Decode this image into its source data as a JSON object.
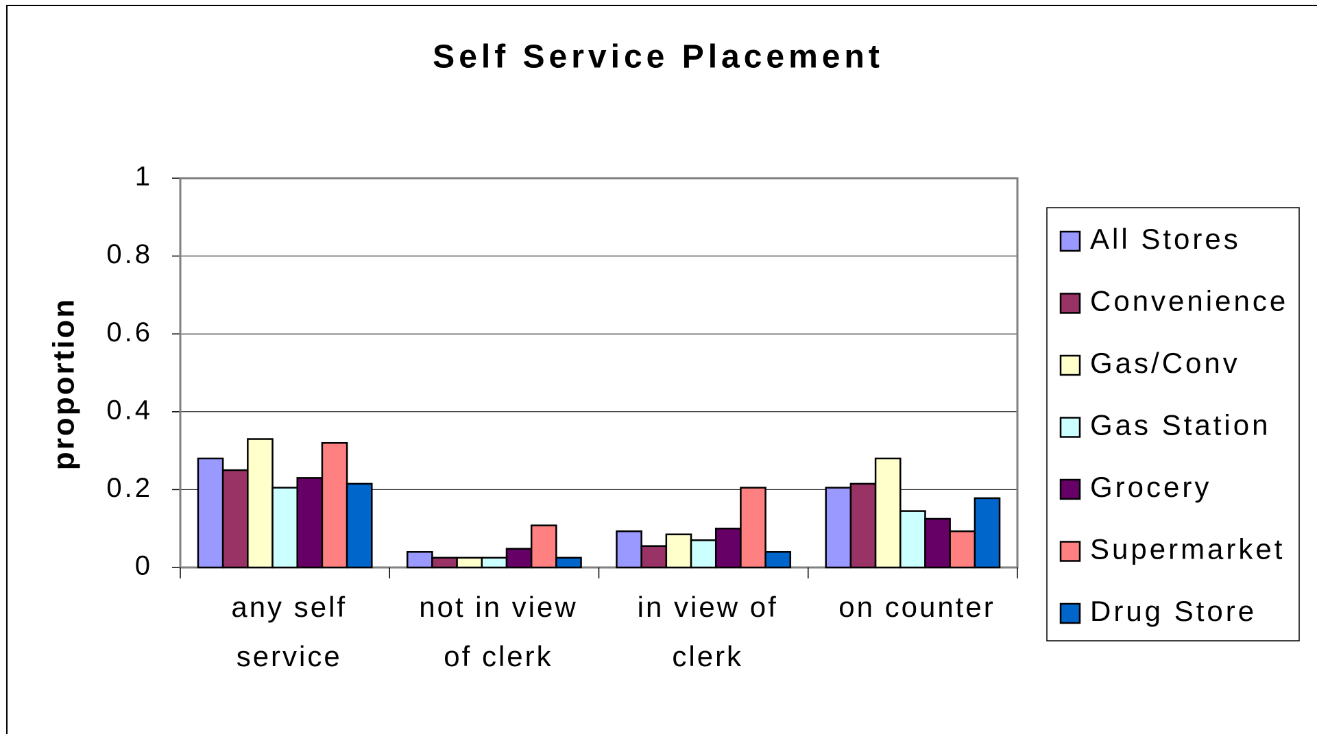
{
  "chart_data": {
    "type": "bar",
    "title": "Self Service Placement",
    "y_label": "proportion",
    "categories": [
      "any self service",
      "not in view of clerk",
      "in view of clerk",
      "on counter"
    ],
    "series": [
      {
        "name": "All Stores",
        "color": "#9999ff",
        "values": [
          0.28,
          0.04,
          0.093,
          0.205
        ]
      },
      {
        "name": "Convenience",
        "color": "#993366",
        "values": [
          0.25,
          0.025,
          0.055,
          0.215
        ]
      },
      {
        "name": "Gas/Conv",
        "color": "#ffffcc",
        "values": [
          0.33,
          0.025,
          0.085,
          0.28
        ]
      },
      {
        "name": "Gas Station",
        "color": "#ccffff",
        "values": [
          0.205,
          0.025,
          0.07,
          0.145
        ]
      },
      {
        "name": "Grocery",
        "color": "#660066",
        "values": [
          0.23,
          0.048,
          0.1,
          0.125
        ]
      },
      {
        "name": "Supermarket",
        "color": "#ff8080",
        "values": [
          0.32,
          0.108,
          0.205,
          0.093
        ]
      },
      {
        "name": "Drug Store",
        "color": "#0066cc",
        "values": [
          0.215,
          0.025,
          0.04,
          0.178
        ]
      }
    ],
    "ylim": [
      0,
      1
    ],
    "yticks": [
      0,
      0.2,
      0.4,
      0.6,
      0.8,
      1
    ],
    "grid": true,
    "legend": "right"
  }
}
